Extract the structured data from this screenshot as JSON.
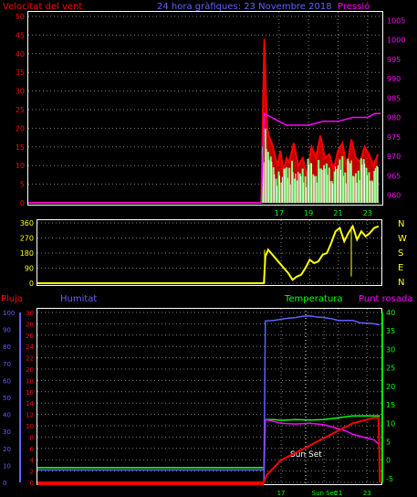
{
  "header": {
    "wind_label": "Velocitat del vent",
    "title": "24 hora gràfiques: 23 Novembre 2018",
    "pressure_label": "Pressió"
  },
  "lower_header": {
    "rain_label": "Pluja",
    "humidity_label": "Humitat",
    "temp_label": "Temperatura",
    "dew_label": "Punt rosada"
  },
  "annotation": {
    "sunset_label": "Sun Set",
    "sunset_tick": "Sun Set"
  },
  "colors": {
    "wind": "#ff0000",
    "gust": "#ffffff",
    "avg": "#7fff7f",
    "pressure": "#ff00ff",
    "direction": "#ffff00",
    "humidity": "#6060ff",
    "temperature": "#ff0000",
    "dew": "#ff00ff",
    "temp_line": "#00ff00",
    "rain_axis": "#6060ff"
  },
  "chart_data": [
    {
      "type": "line",
      "name": "wind",
      "x_ticks": [
        "17",
        "19",
        "21",
        "23"
      ],
      "y_left_ticks": [
        "0",
        "5",
        "10",
        "15",
        "20",
        "25",
        "30",
        "35",
        "40",
        "45",
        "50"
      ],
      "y_right_ticks": [
        "960",
        "965",
        "970",
        "975",
        "980",
        "985",
        "990",
        "995",
        "1000",
        "1005"
      ],
      "ylim_left": [
        0,
        50
      ],
      "ylim_right": [
        958,
        1006
      ],
      "xlim_hours": [
        0,
        24
      ],
      "grid": true,
      "series": [
        {
          "name": "wind_speed",
          "x": [
            0,
            15.8,
            15.9,
            16.0,
            16.1,
            16.2,
            16.3,
            16.5,
            16.7,
            16.9,
            17.1,
            17.3,
            17.5,
            17.7,
            18.0,
            18.3,
            18.6,
            18.9,
            19.2,
            19.5,
            19.8,
            20.1,
            20.4,
            20.7,
            21.0,
            21.3,
            21.6,
            21.9,
            22.2,
            22.5,
            22.8,
            23.1,
            23.4,
            23.7
          ],
          "values": [
            0,
            0,
            24,
            44,
            30,
            20,
            18,
            16,
            13,
            10,
            14,
            8,
            12,
            11,
            16,
            10,
            12,
            7,
            15,
            12,
            18,
            12,
            13,
            9,
            14,
            16,
            9,
            17,
            12,
            11,
            15,
            13,
            10,
            13
          ]
        },
        {
          "name": "pressure",
          "x": [
            15.8,
            16.0,
            16.5,
            17.0,
            17.5,
            18.0,
            19.0,
            20.0,
            21.0,
            22.0,
            23.0,
            23.5,
            23.9
          ],
          "values": [
            958,
            981,
            980,
            979,
            978,
            978,
            978,
            979,
            979,
            980,
            980,
            981,
            981
          ]
        }
      ]
    },
    {
      "type": "line",
      "name": "wind_direction",
      "x_ticks": [],
      "y_ticks": [
        "0",
        "90",
        "180",
        "270",
        "360"
      ],
      "compass_ticks": [
        "N",
        "W",
        "S",
        "E",
        "N"
      ],
      "ylim": [
        0,
        360
      ],
      "series": [
        {
          "name": "direction",
          "x": [
            0,
            15.8,
            15.9,
            16.1,
            16.4,
            16.8,
            17.2,
            17.5,
            17.8,
            18.1,
            18.4,
            18.7,
            19.0,
            19.3,
            19.6,
            19.9,
            20.2,
            20.5,
            20.8,
            21.1,
            21.4,
            21.7,
            22.0,
            22.3,
            22.6,
            22.9,
            23.2,
            23.5,
            23.8
          ],
          "values": [
            0,
            0,
            160,
            200,
            170,
            130,
            90,
            60,
            20,
            40,
            50,
            90,
            140,
            120,
            130,
            170,
            180,
            240,
            310,
            330,
            250,
            300,
            340,
            260,
            310,
            280,
            300,
            330,
            340
          ]
        }
      ]
    },
    {
      "type": "line",
      "name": "temperature_humidity",
      "x_ticks": [
        "17",
        "Sun Set",
        "21",
        "23"
      ],
      "y_rain_ticks": [
        "0",
        "10",
        "20",
        "30",
        "40",
        "50",
        "60",
        "70",
        "80",
        "90",
        "100"
      ],
      "y_hum_ticks": [
        "0",
        "2",
        "4",
        "6",
        "8",
        "10",
        "12",
        "14",
        "16",
        "18",
        "20",
        "22",
        "24",
        "26",
        "28",
        "30"
      ],
      "y_temp_ticks": [
        "-5",
        "0",
        "5",
        "10",
        "15",
        "20",
        "25",
        "30",
        "35",
        "40"
      ],
      "ylim_temp": [
        -6,
        40
      ],
      "ylim_hum": [
        0,
        30
      ],
      "series": [
        {
          "name": "humidity",
          "x": [
            15.8,
            15.9,
            16.5,
            17.0,
            17.5,
            18.0,
            18.5,
            19.0,
            19.5,
            20.0,
            20.5,
            21.0,
            21.5,
            22.0,
            22.5,
            23.0,
            23.5,
            23.9
          ],
          "values": [
            0,
            28.5,
            28.6,
            28.8,
            29.0,
            29.1,
            29.3,
            29.4,
            29.2,
            29.1,
            28.9,
            28.6,
            28.6,
            28.6,
            28.2,
            28.1,
            28.0,
            27.8
          ]
        },
        {
          "name": "temperature",
          "x": [
            0,
            15.8,
            16.0,
            16.5,
            17.0,
            17.5,
            18.0,
            18.5,
            19.0,
            19.5,
            20.0,
            20.5,
            21.0,
            21.5,
            22.0,
            22.5,
            23.0,
            23.5,
            23.8,
            23.9
          ],
          "values": [
            -6,
            -6,
            -4,
            -2,
            0,
            1,
            2,
            3,
            4,
            5,
            6,
            7,
            8,
            9,
            10,
            10.5,
            11,
            11.5,
            11.5,
            -6
          ]
        },
        {
          "name": "dew_point",
          "x": [
            0,
            15.8,
            15.9,
            16.5,
            17.0,
            18.0,
            19.0,
            20.0,
            21.0,
            21.5,
            22.0,
            22.5,
            23.0,
            23.5,
            23.9
          ],
          "values": [
            -6,
            -6,
            11,
            10.5,
            10,
            9.8,
            10,
            9.6,
            8.5,
            8,
            7,
            6.5,
            6,
            5.5,
            4
          ]
        },
        {
          "name": "temp_flat",
          "x": [
            0,
            15.8,
            15.9,
            16.5,
            17.0,
            18.0,
            19.0,
            20.0,
            21.0,
            22.0,
            23.0,
            23.9
          ],
          "values": [
            -2,
            -2,
            11,
            11,
            10.8,
            11,
            10.9,
            11,
            11.5,
            12,
            12,
            12
          ]
        }
      ]
    }
  ]
}
